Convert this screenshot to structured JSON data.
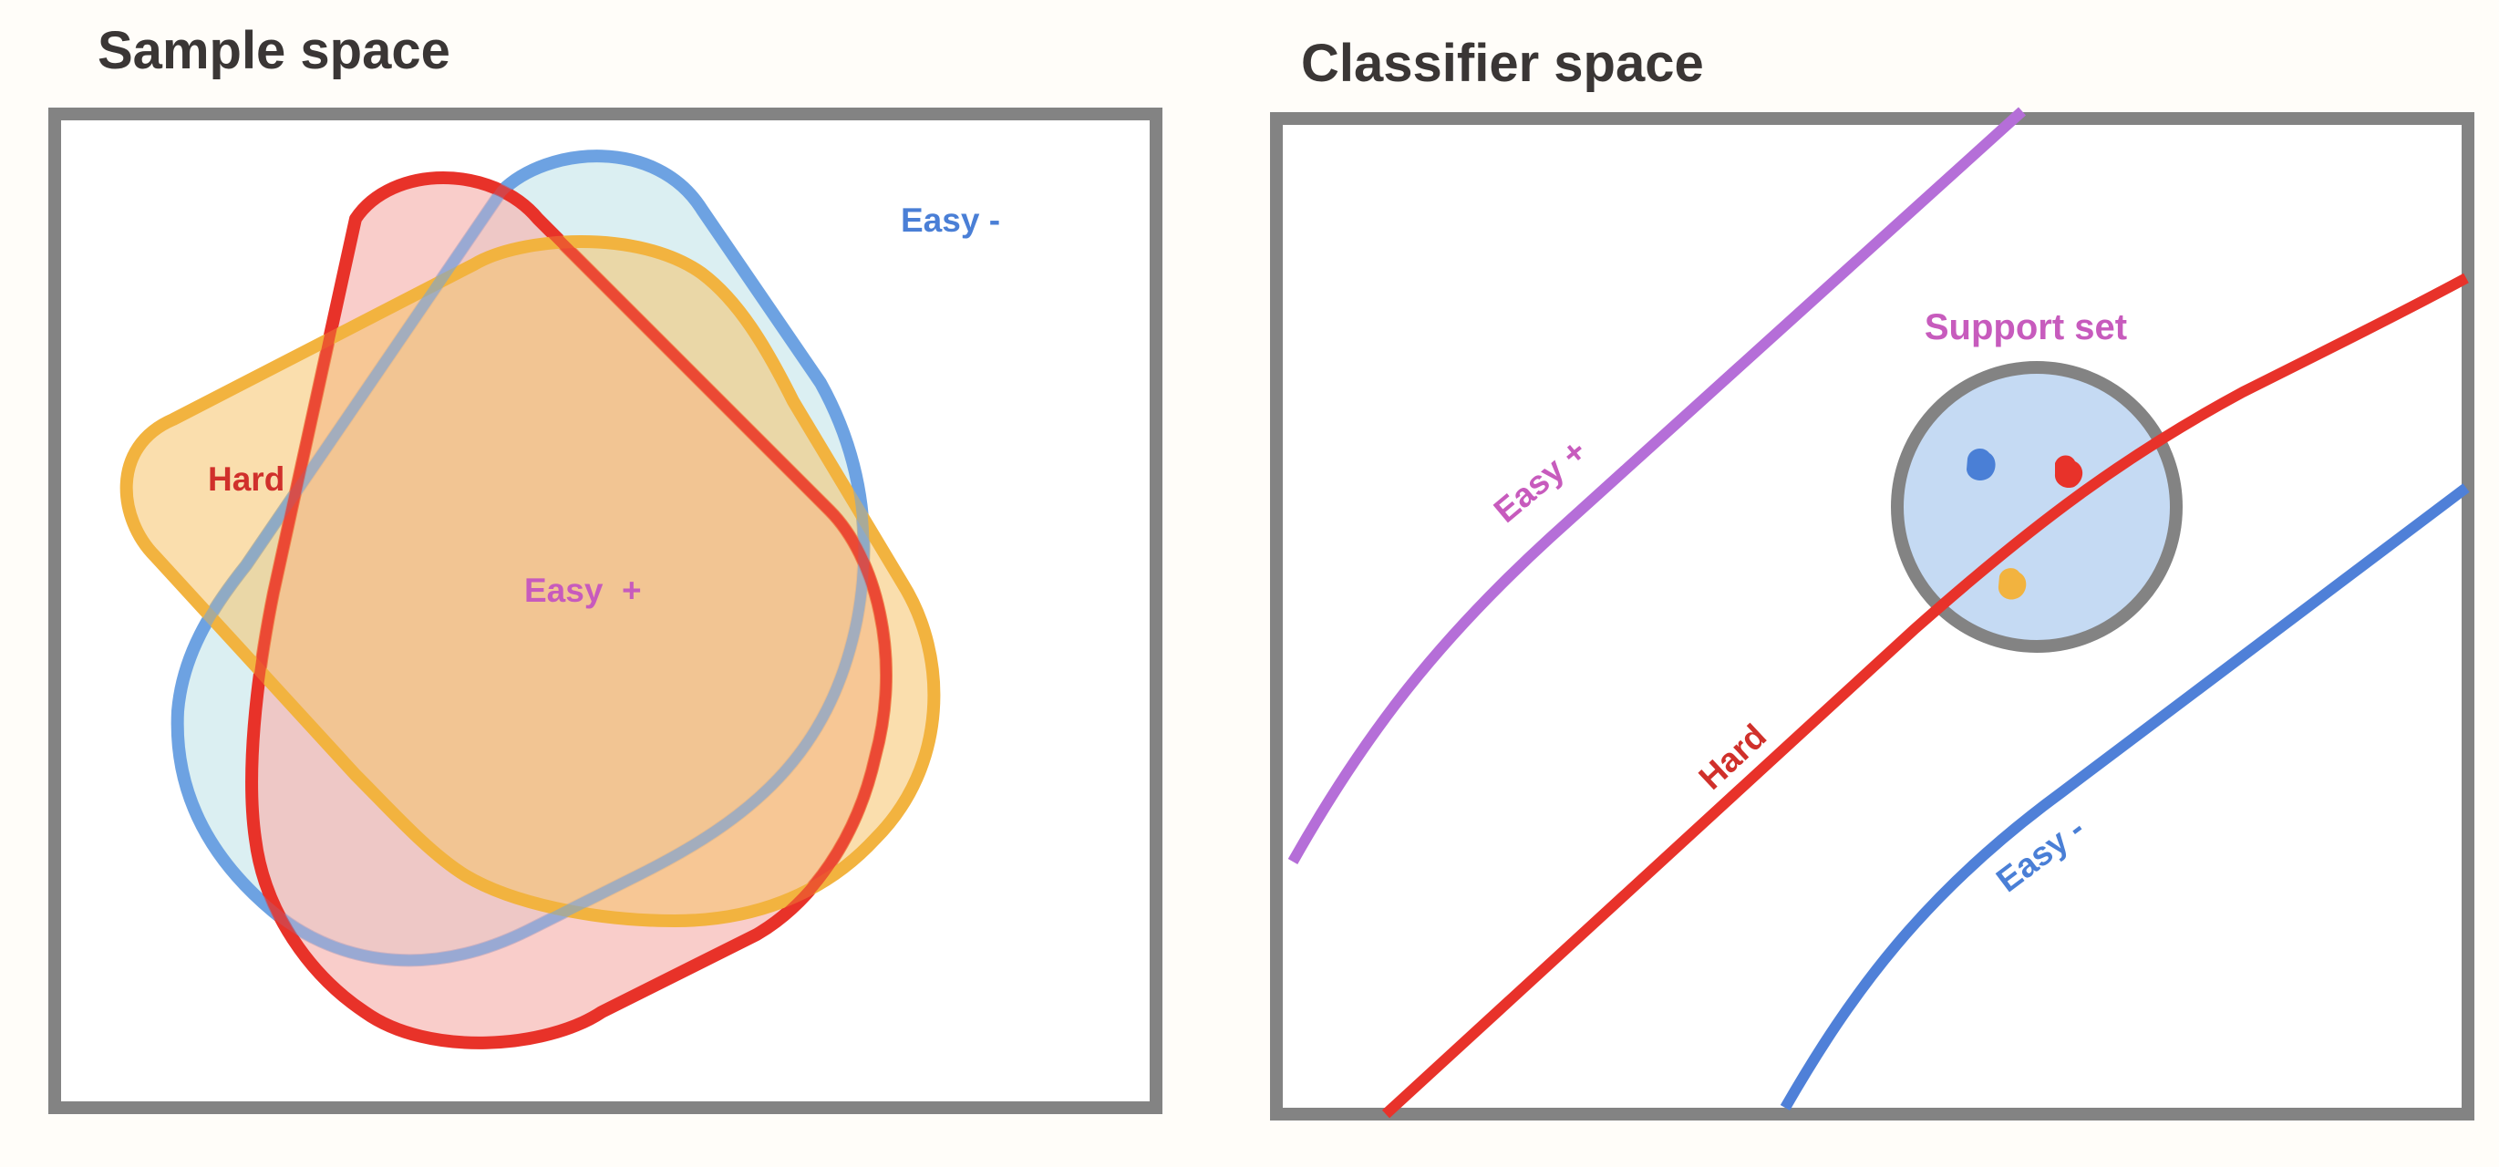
{
  "left_panel": {
    "title": "Sample space",
    "labels": {
      "easy_neg": "Easy -",
      "hard": "Hard",
      "easy_pos": "Easy  +"
    }
  },
  "right_panel": {
    "title": "Classifier space",
    "labels": {
      "support_set": "Support set",
      "easy_pos": "Easy +",
      "hard": "Hard",
      "easy_neg": "Easy -"
    }
  },
  "colors": {
    "frame": "#838383",
    "blue": "#5a93e0",
    "red": "#e8322a",
    "yellow": "#f2b33f",
    "purple": "#b56ed8",
    "label_blue": "#4a7fd6",
    "label_red": "#d0302b",
    "label_magenta": "#c75bbd",
    "support_fill": "#c5daf3"
  }
}
